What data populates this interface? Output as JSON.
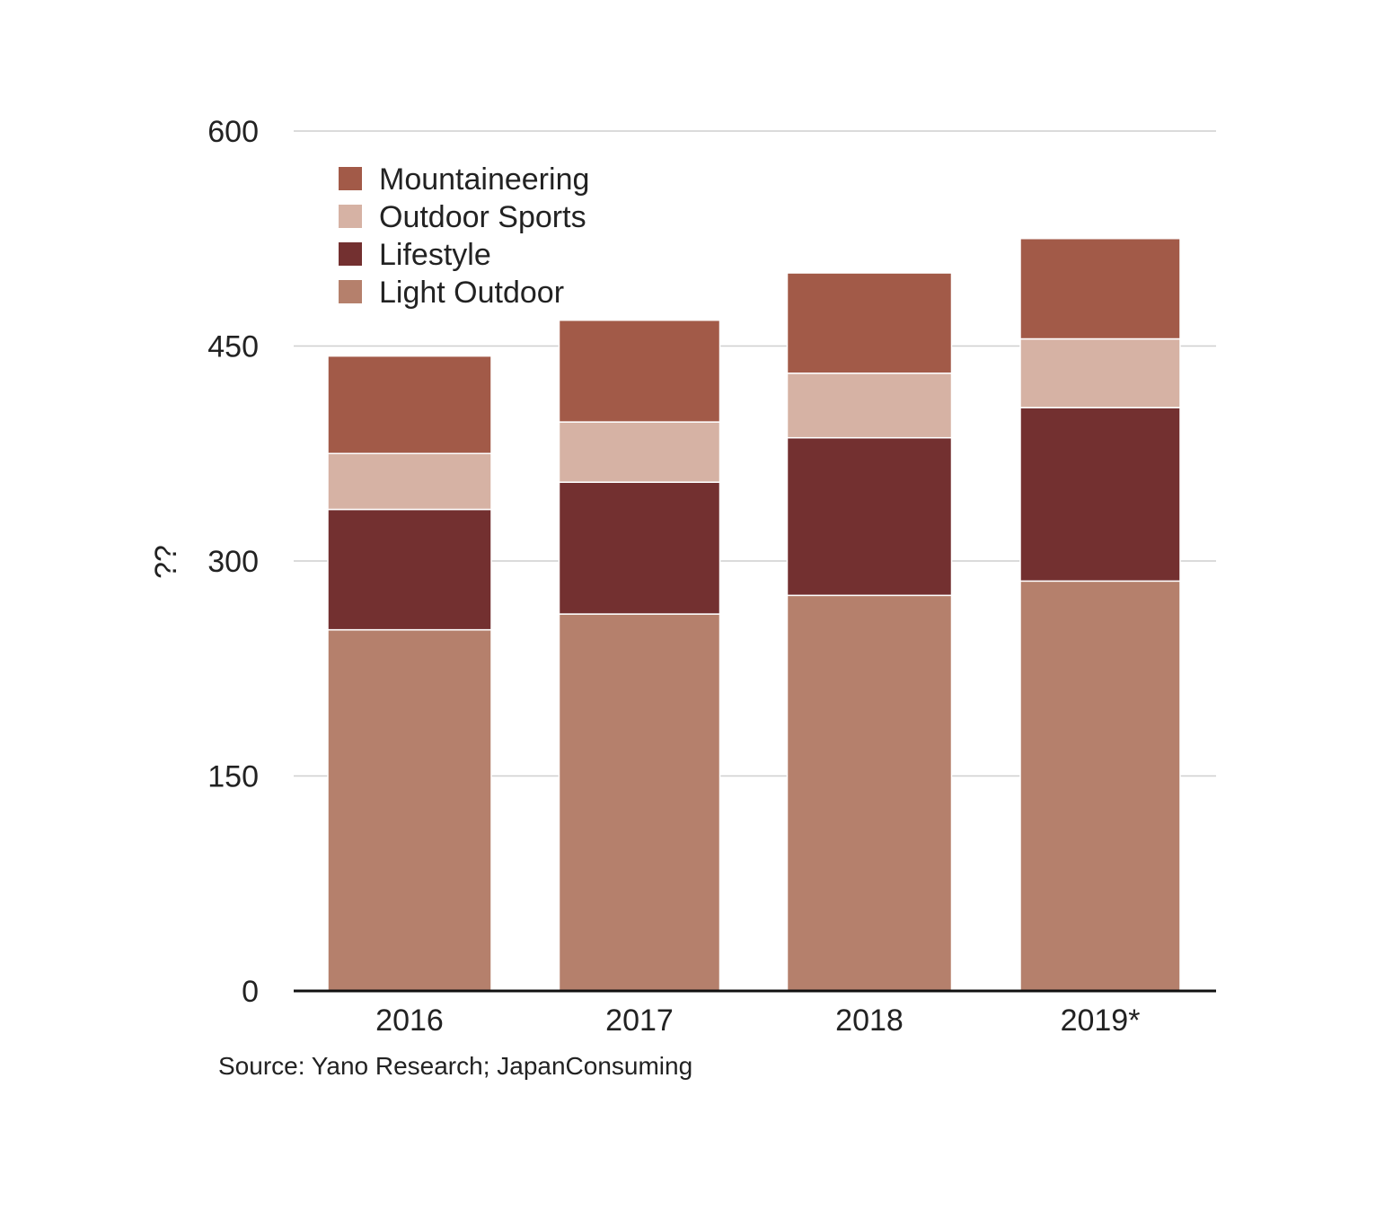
{
  "chart_data": {
    "type": "bar",
    "stacked": true,
    "categories": [
      "2016",
      "2017",
      "2018",
      "2019*"
    ],
    "series": [
      {
        "name": "Light Outdoor",
        "color": "#b5806c",
        "values": [
          252,
          263,
          276,
          286
        ]
      },
      {
        "name": "Lifestyle",
        "color": "#733030",
        "values": [
          84,
          92,
          110,
          121
        ]
      },
      {
        "name": "Outdoor Sports",
        "color": "#d6b2a4",
        "values": [
          39,
          42,
          45,
          48
        ]
      },
      {
        "name": "Mountaineering",
        "color": "#a25a48",
        "values": [
          68,
          71,
          70,
          70
        ]
      }
    ],
    "legend_order": [
      "Mountaineering",
      "Outdoor Sports",
      "Lifestyle",
      "Light Outdoor"
    ],
    "ylabel": "??",
    "ylim": [
      0,
      600
    ],
    "yticks": [
      0,
      150,
      300,
      450,
      600
    ],
    "grid": true,
    "legend_position": "top-left"
  },
  "source": "Source: Yano Research; JapanConsuming"
}
